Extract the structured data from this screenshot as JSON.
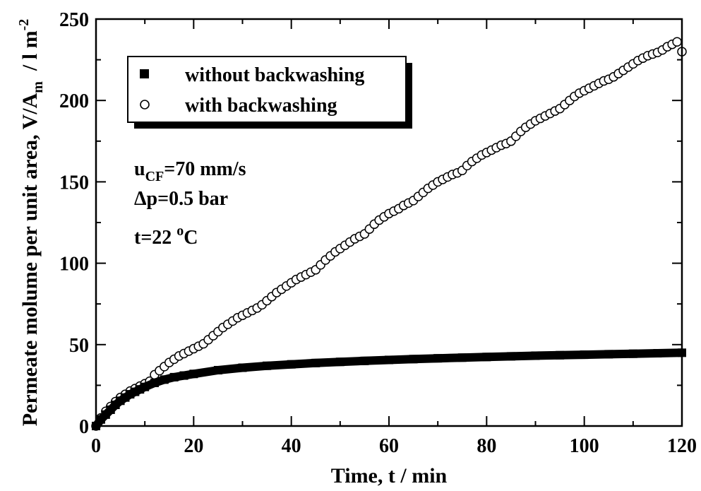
{
  "chart_data": {
    "type": "scatter",
    "xlabel": "Time, t  /  min",
    "ylabel": {
      "main": "Permeate molume per unit area, V/A",
      "sub": "m",
      "unit": "  / l m",
      "sup": "-2"
    },
    "xlim": [
      0,
      120
    ],
    "ylim": [
      0,
      250
    ],
    "xticks": [
      "0",
      "20",
      "40",
      "60",
      "80",
      "100",
      "120"
    ],
    "yticks": [
      "0",
      "50",
      "100",
      "150",
      "200",
      "250"
    ],
    "grid": false,
    "legend_position": "top-left",
    "series": [
      {
        "name": "without backwashing",
        "marker": "filled-square",
        "color": "#000000",
        "x": [
          0,
          1,
          2,
          3,
          4,
          5,
          6,
          7,
          8,
          9,
          10,
          12,
          14,
          16,
          18,
          20,
          25,
          30,
          35,
          40,
          45,
          50,
          55,
          60,
          65,
          70,
          75,
          80,
          85,
          90,
          95,
          100,
          105,
          110,
          115,
          120
        ],
        "y": [
          0,
          4,
          7,
          10,
          13,
          15.5,
          17.5,
          19.5,
          21,
          22.5,
          24,
          26.5,
          28.5,
          30,
          31,
          32,
          34.3,
          35.8,
          37,
          37.9,
          38.7,
          39.4,
          40,
          40.6,
          41.1,
          41.6,
          42,
          42.4,
          42.8,
          43.2,
          43.5,
          43.8,
          44.1,
          44.4,
          44.7,
          45
        ]
      },
      {
        "name": "with backwashing",
        "marker": "open-circle",
        "color": "#000000",
        "x": [
          0,
          1,
          2,
          3,
          4,
          5,
          6,
          7,
          8,
          9,
          10,
          11,
          12,
          13,
          14,
          15,
          16,
          17,
          18,
          19,
          20,
          21,
          22,
          23,
          24,
          25,
          26,
          27,
          28,
          29,
          30,
          31,
          32,
          33,
          34,
          35,
          36,
          37,
          38,
          39,
          40,
          41,
          42,
          43,
          44,
          45,
          46,
          47,
          48,
          49,
          50,
          51,
          52,
          53,
          54,
          55,
          56,
          57,
          58,
          59,
          60,
          61,
          62,
          63,
          64,
          65,
          66,
          67,
          68,
          69,
          70,
          71,
          72,
          73,
          74,
          75,
          76,
          77,
          78,
          79,
          80,
          81,
          82,
          83,
          84,
          85,
          86,
          87,
          88,
          89,
          90,
          91,
          92,
          93,
          94,
          95,
          96,
          97,
          98,
          99,
          100,
          101,
          102,
          103,
          104,
          105,
          106,
          107,
          108,
          109,
          110,
          111,
          112,
          113,
          114,
          115,
          116,
          117,
          118,
          119,
          120
        ],
        "y": [
          0,
          5,
          9,
          12,
          15,
          17.5,
          19.5,
          21.5,
          23,
          24.5,
          26,
          27.5,
          31.5,
          34,
          36.5,
          39,
          41,
          43,
          44.5,
          46,
          47.5,
          49,
          50.5,
          53,
          55.5,
          58,
          60.5,
          62.5,
          64.5,
          66.5,
          68,
          69.5,
          71,
          72.5,
          74.5,
          77,
          79.5,
          82,
          84,
          86,
          88,
          90,
          91.5,
          93,
          94.5,
          96,
          99,
          102,
          104.5,
          107,
          109,
          111,
          113,
          115,
          116.5,
          118,
          121,
          124,
          126.5,
          128.5,
          130.5,
          132,
          133.5,
          135.5,
          137,
          138.5,
          141,
          143.5,
          146,
          148,
          150,
          151.5,
          153,
          154.5,
          155.5,
          157,
          160,
          162.5,
          164.5,
          166.5,
          168,
          169.5,
          171,
          172.5,
          173.5,
          175,
          178,
          181,
          183.5,
          185.5,
          187.5,
          189,
          190.5,
          192,
          193.5,
          195,
          197.5,
          200,
          202.5,
          204.5,
          206,
          207.5,
          209,
          210.5,
          212,
          213,
          214.5,
          216.5,
          218.5,
          220.5,
          222.5,
          224.5,
          226,
          227.5,
          228.5,
          229.5,
          231,
          233,
          234.5,
          236,
          230
        ]
      }
    ],
    "annotations": [
      {
        "text": "u",
        "sub": "CF",
        "rest": "=70 mm/s"
      },
      {
        "text": "Δp=0.5 bar"
      },
      {
        "text": "t=22 ",
        "sup": "o",
        "rest": "C"
      }
    ]
  }
}
